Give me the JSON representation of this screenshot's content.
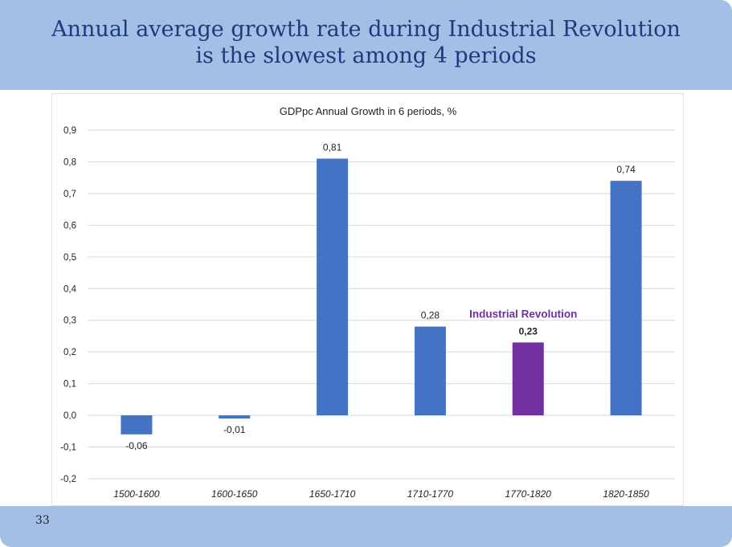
{
  "slide": {
    "title_line1": "Annual average growth rate during Industrial Revolution",
    "title_line2": "is the slowest among 4 periods",
    "page_number": "33"
  },
  "colors": {
    "header_bg": "#a3bfe6",
    "title_text": "#1f3a7a",
    "bar_default": "#4472c4",
    "bar_highlight": "#7030a0"
  },
  "chart_data": {
    "type": "bar",
    "title": "GDPpc Annual Growth in 6 periods, %",
    "categories": [
      "1500-1600",
      "1600-1650",
      "1650-1710",
      "1710-1770",
      "1770-1820",
      "1820-1850"
    ],
    "values": [
      -0.06,
      -0.01,
      0.81,
      0.28,
      0.23,
      0.74
    ],
    "data_labels": [
      "-0,06",
      "-0,01",
      "0,81",
      "0,28",
      "0,23",
      "0,74"
    ],
    "highlight_index": 4,
    "annotation": "Industrial Revolution",
    "ylim": [
      -0.2,
      0.9
    ],
    "yticks": [
      -0.2,
      -0.1,
      0.0,
      0.1,
      0.2,
      0.3,
      0.4,
      0.5,
      0.6,
      0.7,
      0.8,
      0.9
    ],
    "ytick_labels": [
      "-0,2",
      "-0,1",
      "0,0",
      "0,1",
      "0,2",
      "0,3",
      "0,4",
      "0,5",
      "0,6",
      "0,7",
      "0,8",
      "0,9"
    ],
    "xlabel": "",
    "ylabel": "",
    "grid": true,
    "legend": "none"
  }
}
